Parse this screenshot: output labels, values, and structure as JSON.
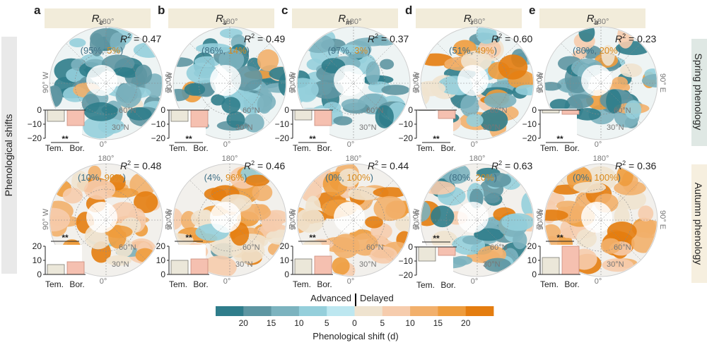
{
  "figure": {
    "y_axis_title": "Phenological shifts",
    "row_labels": [
      "Spring phenology",
      "Autumn phenology"
    ],
    "colors": {
      "advanced": [
        "#2f7d8b",
        "#5e96a2",
        "#7cb3bf",
        "#95cfdb",
        "#bde7f0"
      ],
      "delayed": [
        "#efe3cf",
        "#f6ccad",
        "#f2b06c",
        "#ee9c3d",
        "#e47d10"
      ],
      "temperate_bar": "#ebe7d9",
      "boreal_bar": "#f5c0b0",
      "title_box": "#f2ecda",
      "row_spring_bg": "#dfe8e4",
      "row_autumn_bg": "#f6efdf",
      "yaxis_bg": "#e9e9e9",
      "pct_advanced": "#3f6f85",
      "pct_delayed": "#d98a1c"
    },
    "map_labels": {
      "lon_top": "180°",
      "lon_bottom": "0°",
      "lon_left": "90° W",
      "lon_right": "90° E",
      "lat_60": "60°N",
      "lat_30": "30°N"
    },
    "significance": "**",
    "bar_categories": [
      "Tem.",
      "Bor."
    ],
    "colorbar": {
      "title": "Phenological shift (d)",
      "left_label": "Advanced",
      "right_label": "Delayed",
      "ticks": [
        "20",
        "15",
        "10",
        "5",
        "0",
        "5",
        "10",
        "15",
        "20"
      ]
    }
  },
  "chart_data": [
    {
      "panel": "a",
      "metric_main": "R",
      "metric_sub": "e",
      "row": "Spring phenology",
      "r2_prefix": "R",
      "r2_sup": "2",
      "r2_text": " = 0.47",
      "r2": 0.47,
      "pct_advanced": "95%",
      "pct_delayed": "5%",
      "type": "bar",
      "categories": [
        "Tem.",
        "Bor."
      ],
      "values": [
        -8,
        -11
      ],
      "ylim": [
        -20,
        0
      ],
      "yticks": [
        "0",
        "−10",
        "−20"
      ],
      "ytick_values": [
        0,
        -10,
        -20
      ]
    },
    {
      "panel": "b",
      "metric_main": "R",
      "metric_sub": "s",
      "row": "Spring phenology",
      "r2_prefix": "R",
      "r2_sup": "2",
      "r2_text": " = 0.49",
      "r2": 0.49,
      "pct_advanced": "86%",
      "pct_delayed": "14%",
      "type": "bar",
      "categories": [
        "Tem.",
        "Bor."
      ],
      "values": [
        -8,
        -12
      ],
      "ylim": [
        -20,
        0
      ],
      "yticks": [
        "0",
        "−10",
        "−20"
      ],
      "ytick_values": [
        0,
        -10,
        -20
      ]
    },
    {
      "panel": "c",
      "metric_main": "R",
      "metric_sub": "m",
      "row": "Spring phenology",
      "r2_prefix": "R",
      "r2_sup": "2",
      "r2_text": " = 0.37",
      "r2": 0.37,
      "pct_advanced": "97%",
      "pct_delayed": "3%",
      "type": "bar",
      "categories": [
        "Tem.",
        "Bor."
      ],
      "values": [
        -7,
        -11
      ],
      "ylim": [
        -20,
        0
      ],
      "yticks": [
        "0",
        "−10",
        "−20"
      ],
      "ytick_values": [
        0,
        -10,
        -20
      ]
    },
    {
      "panel": "d",
      "metric_main": "R",
      "metric_sub": "r",
      "row": "Spring phenology",
      "r2_prefix": "R",
      "r2_sup": "2",
      "r2_text": " = 0.60",
      "r2": 0.6,
      "pct_advanced": "51%",
      "pct_delayed": "49%",
      "type": "bar",
      "categories": [
        "Tem.",
        "Bor."
      ],
      "values": [
        0,
        -6
      ],
      "ylim": [
        -20,
        0
      ],
      "yticks": [
        "0",
        "−10",
        "−20"
      ],
      "ytick_values": [
        0,
        -10,
        -20
      ]
    },
    {
      "panel": "e",
      "metric_main": "R",
      "metric_sub": "a",
      "row": "Spring phenology",
      "r2_prefix": "R",
      "r2_sup": "2",
      "r2_text": " = 0.23",
      "r2": 0.23,
      "pct_advanced": "80%",
      "pct_delayed": "20%",
      "type": "bar",
      "categories": [
        "Tem.",
        "Bor."
      ],
      "values": [
        -2,
        -3
      ],
      "ylim": [
        -20,
        0
      ],
      "yticks": [
        "0",
        "−10",
        "−20"
      ],
      "ytick_values": [
        0,
        -10,
        -20
      ]
    },
    {
      "panel": "a",
      "row": "Autumn phenology",
      "r2_prefix": "R",
      "r2_sup": "2",
      "r2_text": " = 0.48",
      "r2": 0.48,
      "pct_advanced": "10%",
      "pct_delayed": "90%",
      "type": "bar",
      "categories": [
        "Tem.",
        "Bor."
      ],
      "values": [
        7,
        9
      ],
      "ylim": [
        0,
        20
      ],
      "yticks": [
        "20",
        "10",
        "0"
      ],
      "ytick_values": [
        20,
        10,
        0
      ]
    },
    {
      "panel": "b",
      "row": "Autumn phenology",
      "r2_prefix": "R",
      "r2_sup": "2",
      "r2_text": " = 0.46",
      "r2": 0.46,
      "pct_advanced": "4%",
      "pct_delayed": "96%",
      "type": "bar",
      "categories": [
        "Tem.",
        "Bor."
      ],
      "values": [
        10,
        11
      ],
      "ylim": [
        0,
        20
      ],
      "yticks": [
        "20",
        "10",
        "0"
      ],
      "ytick_values": [
        20,
        10,
        0
      ]
    },
    {
      "panel": "c",
      "row": "Autumn phenology",
      "r2_prefix": "R",
      "r2_sup": "2",
      "r2_text": " = 0.44",
      "r2": 0.44,
      "pct_advanced": "0%",
      "pct_delayed": "100%",
      "type": "bar",
      "categories": [
        "Tem.",
        "Bor."
      ],
      "values": [
        11,
        13
      ],
      "ylim": [
        0,
        20
      ],
      "yticks": [
        "20",
        "10",
        "0"
      ],
      "ytick_values": [
        20,
        10,
        0
      ]
    },
    {
      "panel": "d",
      "row": "Autumn phenology",
      "r2_prefix": "R",
      "r2_sup": "2",
      "r2_text": " = 0.63",
      "r2": 0.63,
      "pct_advanced": "80%",
      "pct_delayed": "20%",
      "type": "bar",
      "categories": [
        "Tem.",
        "Bor."
      ],
      "values": [
        -10,
        -6
      ],
      "ylim": [
        -20,
        0
      ],
      "yticks": [
        "0",
        "−10",
        "−20"
      ],
      "ytick_values": [
        0,
        -10,
        -20
      ]
    },
    {
      "panel": "e",
      "row": "Autumn phenology",
      "r2_prefix": "R",
      "r2_sup": "2",
      "r2_text": " = 0.36",
      "r2": 0.36,
      "pct_advanced": "0%",
      "pct_delayed": "100%",
      "type": "bar",
      "categories": [
        "Tem.",
        "Bor."
      ],
      "values": [
        12,
        20
      ],
      "ylim": [
        0,
        20
      ],
      "yticks": [
        "20",
        "10",
        "0"
      ],
      "ytick_values": [
        20,
        10,
        0
      ]
    }
  ]
}
